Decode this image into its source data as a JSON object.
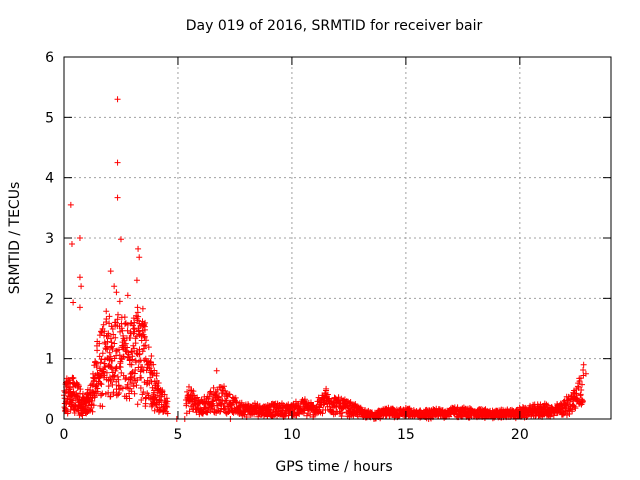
{
  "chart_data": {
    "type": "scatter",
    "title": "Day 019 of 2016, SRMTID for receiver bair",
    "xlabel": "GPS time / hours",
    "ylabel": "SRMTID / TECUs",
    "xlim": [
      0,
      24
    ],
    "ylim": [
      0,
      6
    ],
    "xticks": [
      0,
      5,
      10,
      15,
      20
    ],
    "yticks": [
      0,
      1,
      2,
      3,
      4,
      5,
      6
    ],
    "grid": true,
    "marker": "+",
    "series_color": "#ff0000",
    "envelope": [
      [
        0.0,
        0.35
      ],
      [
        0.3,
        0.45
      ],
      [
        0.6,
        0.35
      ],
      [
        0.9,
        0.2
      ],
      [
        1.2,
        0.35
      ],
      [
        1.5,
        0.8
      ],
      [
        1.8,
        1.1
      ],
      [
        2.1,
        1.0
      ],
      [
        2.4,
        1.05
      ],
      [
        2.7,
        0.95
      ],
      [
        3.0,
        1.0
      ],
      [
        3.3,
        1.15
      ],
      [
        3.6,
        0.95
      ],
      [
        3.9,
        0.55
      ],
      [
        4.2,
        0.35
      ],
      [
        4.5,
        0.2
      ],
      [
        5.0,
        0.05
      ],
      [
        5.5,
        0.35
      ],
      [
        6.0,
        0.18
      ],
      [
        6.5,
        0.3
      ],
      [
        7.0,
        0.35
      ],
      [
        7.5,
        0.2
      ],
      [
        8.0,
        0.15
      ],
      [
        9.0,
        0.15
      ],
      [
        10.0,
        0.15
      ],
      [
        10.5,
        0.2
      ],
      [
        11.0,
        0.15
      ],
      [
        11.5,
        0.3
      ],
      [
        12.0,
        0.22
      ],
      [
        13.0,
        0.12
      ],
      [
        13.6,
        0.05
      ],
      [
        14.0,
        0.1
      ],
      [
        15.0,
        0.1
      ],
      [
        15.5,
        0.08
      ],
      [
        16.0,
        0.08
      ],
      [
        17.0,
        0.12
      ],
      [
        18.0,
        0.1
      ],
      [
        19.0,
        0.08
      ],
      [
        20.0,
        0.1
      ],
      [
        21.0,
        0.15
      ],
      [
        21.5,
        0.12
      ],
      [
        22.0,
        0.2
      ],
      [
        22.5,
        0.35
      ],
      [
        22.8,
        0.6
      ]
    ],
    "outliers": [
      {
        "x": 2.35,
        "y": 5.3
      },
      {
        "x": 2.35,
        "y": 4.25
      },
      {
        "x": 2.35,
        "y": 3.67
      },
      {
        "x": 0.3,
        "y": 3.55
      },
      {
        "x": 0.7,
        "y": 3.0
      },
      {
        "x": 0.35,
        "y": 2.9
      },
      {
        "x": 2.5,
        "y": 2.98
      },
      {
        "x": 3.25,
        "y": 2.82
      },
      {
        "x": 3.3,
        "y": 2.68
      },
      {
        "x": 0.7,
        "y": 2.35
      },
      {
        "x": 0.75,
        "y": 2.2
      },
      {
        "x": 2.05,
        "y": 2.45
      },
      {
        "x": 2.3,
        "y": 2.1
      },
      {
        "x": 0.4,
        "y": 1.93
      },
      {
        "x": 0.7,
        "y": 1.85
      },
      {
        "x": 2.8,
        "y": 2.05
      },
      {
        "x": 2.2,
        "y": 2.2
      },
      {
        "x": 3.2,
        "y": 2.3
      },
      {
        "x": 2.45,
        "y": 1.95
      },
      {
        "x": 3.5,
        "y": 1.55
      },
      {
        "x": 6.7,
        "y": 0.8
      },
      {
        "x": 22.8,
        "y": 0.9
      },
      {
        "x": 22.9,
        "y": 0.75
      },
      {
        "x": 11.5,
        "y": 0.5
      },
      {
        "x": 13.6,
        "y": 0.0
      },
      {
        "x": 4.95,
        "y": 0.0
      },
      {
        "x": 5.3,
        "y": 0.0
      },
      {
        "x": 16.0,
        "y": 0.0
      },
      {
        "x": 7.3,
        "y": 0.0
      }
    ]
  }
}
